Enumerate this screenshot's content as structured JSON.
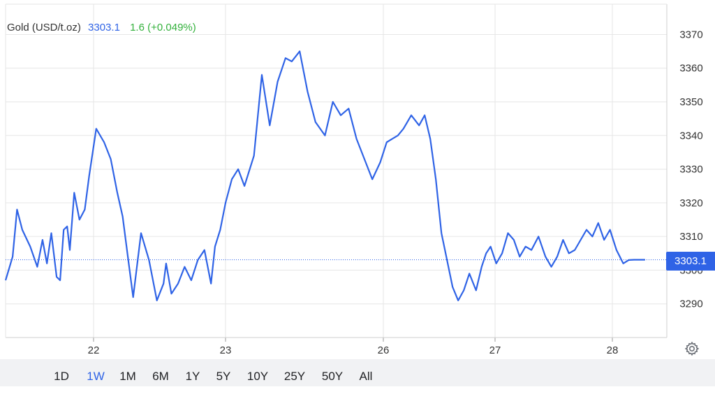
{
  "legend": {
    "instrument": "Gold (USD/t.oz)",
    "last": "3303.1",
    "change": "1.6 (+0.049%)"
  },
  "price_tag": "3303.1",
  "colors": {
    "line": "#2f63e6",
    "grid": "#e6e6e6",
    "positive": "#33b13c",
    "range_bar": "#f1f2f4"
  },
  "icons": {
    "settings": "gear-icon"
  },
  "range_buttons": [
    {
      "label": "1D",
      "active": false
    },
    {
      "label": "1W",
      "active": true
    },
    {
      "label": "1M",
      "active": false
    },
    {
      "label": "6M",
      "active": false
    },
    {
      "label": "1Y",
      "active": false
    },
    {
      "label": "5Y",
      "active": false
    },
    {
      "label": "10Y",
      "active": false
    },
    {
      "label": "25Y",
      "active": false
    },
    {
      "label": "50Y",
      "active": false
    },
    {
      "label": "All",
      "active": false
    }
  ],
  "chart_data": {
    "type": "line",
    "title": "Gold (USD/t.oz)",
    "x_tick_labels": [
      "22",
      "23",
      "26",
      "27",
      "28"
    ],
    "x_tick_positions": [
      1.0,
      2.0,
      3.0,
      4.0,
      5.0
    ],
    "y_ticks": [
      3290,
      3300,
      3310,
      3320,
      3330,
      3340,
      3350,
      3360,
      3370
    ],
    "xlim": [
      0,
      5.4
    ],
    "ylim": [
      3280,
      3379
    ],
    "grid": true,
    "current_price_line": 3303.1,
    "series": [
      {
        "name": "Gold (USD/t.oz)",
        "x": [
          0.0,
          0.08,
          0.13,
          0.19,
          0.28,
          0.36,
          0.42,
          0.47,
          0.52,
          0.58,
          0.62,
          0.66,
          0.7,
          0.73,
          0.78,
          0.84,
          0.9,
          0.95,
          1.02,
          1.08,
          1.13,
          1.18,
          1.22,
          1.26,
          1.3,
          1.36,
          1.42,
          1.48,
          1.53,
          1.55,
          1.59,
          1.64,
          1.69,
          1.74,
          1.79,
          1.84,
          1.89,
          1.92,
          1.96,
          2.0,
          2.04,
          2.08,
          2.12,
          2.18,
          2.23,
          2.28,
          2.33,
          2.38,
          2.42,
          2.47,
          2.52,
          2.57,
          2.63,
          2.68,
          2.73,
          2.78,
          2.83,
          2.88,
          2.93,
          2.98,
          3.03,
          3.08,
          3.13,
          3.18,
          3.25,
          3.32,
          3.37,
          3.42,
          3.47,
          3.52,
          3.57,
          3.62,
          3.67,
          3.72,
          3.77,
          3.83,
          3.88,
          3.92,
          3.96,
          4.01,
          4.06,
          4.11,
          4.16,
          4.21,
          4.26,
          4.31,
          4.37,
          4.43,
          4.48,
          4.53,
          4.58,
          4.63,
          4.68,
          4.73,
          4.78,
          4.83,
          4.88,
          4.93,
          4.98,
          5.03,
          5.08,
          5.12,
          5.16,
          5.2,
          5.24
        ],
        "y": [
          3297,
          3304,
          3318,
          3312,
          3307,
          3301,
          3309,
          3302,
          3311,
          3298,
          3297,
          3312,
          3313,
          3306,
          3323,
          3315,
          3318,
          3328,
          3342,
          3338,
          3333,
          3323,
          3316,
          3304,
          3292,
          3311,
          3303,
          3291,
          3296,
          3302,
          3293,
          3296,
          3301,
          3297,
          3303,
          3306,
          3296,
          3307,
          3312,
          3320,
          3327,
          3330,
          3325,
          3334,
          3358,
          3343,
          3356,
          3363,
          3362,
          3365,
          3353,
          3344,
          3340,
          3350,
          3346,
          3348,
          3339,
          3333,
          3327,
          3332,
          3338,
          3339,
          3340,
          3342,
          3346,
          3343,
          3346,
          3339,
          3327,
          3311,
          3303,
          3295,
          3291,
          3294,
          3299,
          3294,
          3301,
          3305,
          3307,
          3302,
          3305,
          3311,
          3309,
          3304,
          3307,
          3306,
          3310,
          3304,
          3301,
          3304,
          3309,
          3305,
          3306,
          3309,
          3312,
          3310,
          3314,
          3309,
          3312,
          3306,
          3302,
          3303,
          3303.1,
          3303.1,
          3303.1
        ]
      }
    ]
  }
}
